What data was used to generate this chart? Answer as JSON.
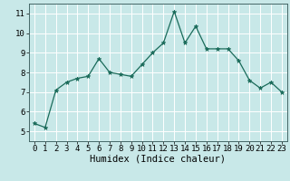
{
  "x": [
    0,
    1,
    2,
    3,
    4,
    5,
    6,
    7,
    8,
    9,
    10,
    11,
    12,
    13,
    14,
    15,
    16,
    17,
    18,
    19,
    20,
    21,
    22,
    23
  ],
  "y": [
    5.4,
    5.2,
    7.1,
    7.5,
    7.7,
    7.8,
    8.7,
    8.0,
    7.9,
    7.8,
    8.4,
    9.0,
    9.5,
    11.1,
    9.5,
    10.35,
    9.2,
    9.2,
    9.2,
    8.6,
    7.6,
    7.2,
    7.5,
    7.0
  ],
  "xlabel": "Humidex (Indice chaleur)",
  "ylim": [
    4.5,
    11.5
  ],
  "xlim": [
    -0.5,
    23.5
  ],
  "yticks": [
    5,
    6,
    7,
    8,
    9,
    10,
    11
  ],
  "xticks": [
    0,
    1,
    2,
    3,
    4,
    5,
    6,
    7,
    8,
    9,
    10,
    11,
    12,
    13,
    14,
    15,
    16,
    17,
    18,
    19,
    20,
    21,
    22,
    23
  ],
  "line_color": "#1a6b5a",
  "marker_color": "#1a6b5a",
  "bg_color": "#c8e8e8",
  "grid_color": "#ffffff",
  "xlabel_fontsize": 7.5,
  "tick_fontsize": 6.5
}
